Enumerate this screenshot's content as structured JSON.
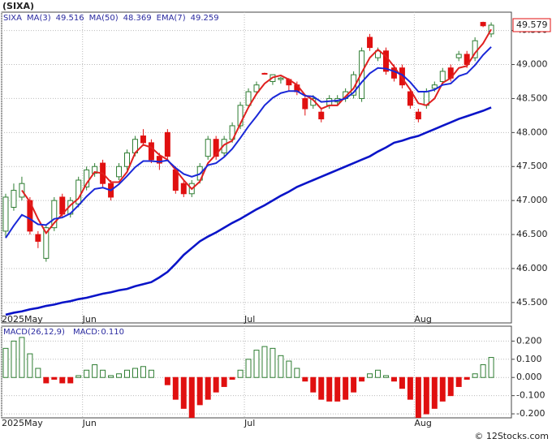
{
  "title": "(SIXA)",
  "footer": "© 12Stocks.com",
  "chart_data": [
    {
      "type": "candlestick",
      "xlim": [
        -0.5,
        62.5
      ],
      "xticks": [
        {
          "value": -0.5,
          "label": "2025May"
        },
        {
          "value": 9.5,
          "label": "Jun"
        },
        {
          "value": 29.5,
          "label": "Jul"
        },
        {
          "value": 50.5,
          "label": "Aug"
        }
      ],
      "ylim": [
        45.2,
        49.77
      ],
      "yticks": [
        {
          "value": 45.5,
          "label": "45.500"
        },
        {
          "value": 46,
          "label": "46.000"
        },
        {
          "value": 46.5,
          "label": "46.500"
        },
        {
          "value": 47,
          "label": "47.000"
        },
        {
          "value": 47.5,
          "label": "47.500"
        },
        {
          "value": 48,
          "label": "48.000"
        },
        {
          "value": 48.5,
          "label": "48.500"
        },
        {
          "value": 49,
          "label": "49.000"
        },
        {
          "value": 49.5,
          "label": "49.500"
        }
      ],
      "grid": true,
      "up_color": "#2e7d32",
      "down_color": "#e01010",
      "series": [
        {
          "name": "SIXA",
          "type": "candlestick",
          "open": [
            46.55,
            46.9,
            47.05,
            47.0,
            46.5,
            46.15,
            46.6,
            47.05,
            46.8,
            46.95,
            47.2,
            47.4,
            47.55,
            47.25,
            47.35,
            47.5,
            47.7,
            47.95,
            47.85,
            47.65,
            48.0,
            47.45,
            47.25,
            47.1,
            47.3,
            47.65,
            47.9,
            47.7,
            47.9,
            48.1,
            48.4,
            48.6,
            48.87,
            48.75,
            48.78,
            48.78,
            48.7,
            48.5,
            48.4,
            48.3,
            48.4,
            48.45,
            48.5,
            48.55,
            48.5,
            49.4,
            49.1,
            49.2,
            48.95,
            48.95,
            48.6,
            48.3,
            48.4,
            48.65,
            48.75,
            48.95,
            49.1,
            49.15,
            49.1,
            49.62,
            49.45
          ],
          "high": [
            47.1,
            47.25,
            47.35,
            47.05,
            46.55,
            46.65,
            47.05,
            47.1,
            47.05,
            47.35,
            47.5,
            47.55,
            47.6,
            47.3,
            47.55,
            47.75,
            47.95,
            48.05,
            47.9,
            47.7,
            48.05,
            47.5,
            47.3,
            47.3,
            47.55,
            47.95,
            47.95,
            47.95,
            48.15,
            48.45,
            48.65,
            48.75,
            48.88,
            48.85,
            48.82,
            48.8,
            48.75,
            48.55,
            48.55,
            48.35,
            48.55,
            48.55,
            48.65,
            48.9,
            49.25,
            49.45,
            49.25,
            49.25,
            49.0,
            49.0,
            48.65,
            48.35,
            48.65,
            48.75,
            48.95,
            49.0,
            49.2,
            49.2,
            49.4,
            49.63,
            49.62
          ],
          "low": [
            46.45,
            46.85,
            47.0,
            46.5,
            46.3,
            46.1,
            46.55,
            46.75,
            46.75,
            46.9,
            47.15,
            47.35,
            47.2,
            47.0,
            47.3,
            47.45,
            47.65,
            47.8,
            47.55,
            47.45,
            47.6,
            47.1,
            47.05,
            47.05,
            47.25,
            47.6,
            47.6,
            47.65,
            47.85,
            48.05,
            48.35,
            48.55,
            48.86,
            48.7,
            48.72,
            48.6,
            48.55,
            48.25,
            48.35,
            48.15,
            48.35,
            48.4,
            48.45,
            48.5,
            48.45,
            49.2,
            49.05,
            48.85,
            48.75,
            48.65,
            48.35,
            48.15,
            48.35,
            48.6,
            48.7,
            48.75,
            49.05,
            48.95,
            49.05,
            49.55,
            49.4
          ],
          "close": [
            47.05,
            47.15,
            47.25,
            46.55,
            46.4,
            46.6,
            47.0,
            46.8,
            47.0,
            47.3,
            47.45,
            47.5,
            47.25,
            47.05,
            47.5,
            47.7,
            47.9,
            47.85,
            47.6,
            47.55,
            47.65,
            47.15,
            47.1,
            47.25,
            47.5,
            47.9,
            47.65,
            47.9,
            48.1,
            48.4,
            48.6,
            48.7,
            48.87,
            48.85,
            48.8,
            48.7,
            48.6,
            48.35,
            48.5,
            48.2,
            48.5,
            48.5,
            48.6,
            48.85,
            49.2,
            49.25,
            49.2,
            48.9,
            48.8,
            48.7,
            48.4,
            48.2,
            48.6,
            48.7,
            48.9,
            48.8,
            49.15,
            49.0,
            49.35,
            49.57,
            49.579
          ]
        },
        {
          "name": "MA(3)",
          "type": "line",
          "color": "#e02020",
          "width": 2,
          "values": [
            null,
            null,
            47.15,
            46.98,
            46.73,
            46.52,
            46.67,
            46.8,
            46.93,
            47.03,
            47.25,
            47.42,
            47.4,
            47.27,
            47.27,
            47.42,
            47.7,
            47.82,
            47.78,
            47.67,
            47.6,
            47.45,
            47.3,
            47.17,
            47.28,
            47.55,
            47.68,
            47.82,
            47.88,
            48.13,
            48.37,
            48.57,
            48.72,
            48.81,
            48.84,
            48.78,
            48.7,
            48.55,
            48.48,
            48.35,
            48.4,
            48.4,
            48.53,
            48.65,
            48.88,
            49.1,
            49.22,
            49.12,
            48.97,
            48.8,
            48.63,
            48.43,
            48.4,
            48.5,
            48.73,
            48.8,
            48.95,
            48.98,
            49.17,
            49.31,
            49.516
          ]
        },
        {
          "name": "MA(50)",
          "type": "line",
          "color": "#0a14c8",
          "width": 2.6,
          "values": [
            45.32,
            45.35,
            45.37,
            45.4,
            45.42,
            45.45,
            45.47,
            45.5,
            45.52,
            45.55,
            45.57,
            45.6,
            45.63,
            45.65,
            45.68,
            45.7,
            45.74,
            45.77,
            45.8,
            45.87,
            45.95,
            46.07,
            46.2,
            46.3,
            46.4,
            46.47,
            46.53,
            46.6,
            46.67,
            46.73,
            46.8,
            46.87,
            46.93,
            47.0,
            47.07,
            47.13,
            47.2,
            47.25,
            47.3,
            47.35,
            47.4,
            47.45,
            47.5,
            47.55,
            47.6,
            47.65,
            47.72,
            47.78,
            47.85,
            47.88,
            47.92,
            47.95,
            48.0,
            48.05,
            48.1,
            48.15,
            48.2,
            48.24,
            48.28,
            48.32,
            48.369
          ]
        },
        {
          "name": "EMA(7)",
          "type": "line",
          "color": "#1a28d8",
          "width": 2,
          "values": [
            46.45,
            46.63,
            46.79,
            46.73,
            46.65,
            46.64,
            46.73,
            46.75,
            46.81,
            46.93,
            47.06,
            47.17,
            47.19,
            47.15,
            47.24,
            47.36,
            47.49,
            47.58,
            47.58,
            47.57,
            47.59,
            47.48,
            47.39,
            47.35,
            47.39,
            47.52,
            47.55,
            47.64,
            47.76,
            47.92,
            48.09,
            48.24,
            48.4,
            48.51,
            48.58,
            48.61,
            48.61,
            48.54,
            48.53,
            48.45,
            48.46,
            48.47,
            48.5,
            48.59,
            48.74,
            48.87,
            48.95,
            48.94,
            48.9,
            48.85,
            48.74,
            48.6,
            48.6,
            48.63,
            48.7,
            48.72,
            48.83,
            48.87,
            48.99,
            49.14,
            49.259
          ]
        }
      ]
    },
    {
      "type": "bar",
      "name": "MACD(26,12,9)",
      "legend_name": "MACD:",
      "legend_label": "0.110",
      "xlim": [
        -0.5,
        62.5
      ],
      "xticks": [
        {
          "value": -0.5,
          "label": "2025May"
        },
        {
          "value": 9.5,
          "label": "Jun"
        },
        {
          "value": 29.5,
          "label": "Jul"
        },
        {
          "value": 50.5,
          "label": "Aug"
        }
      ],
      "ylim": [
        -0.222,
        0.282
      ],
      "yticks": [
        {
          "value": -0.2,
          "label": "-0.200"
        },
        {
          "value": -0.1,
          "label": "-0.100"
        },
        {
          "value": 0,
          "label": "0.000"
        },
        {
          "value": 0.1,
          "label": "0.100"
        },
        {
          "value": 0.2,
          "label": "0.200"
        }
      ],
      "grid": true,
      "up_color": "#2e7d32",
      "down_color": "#e01010",
      "values": [
        0.16,
        0.2,
        0.22,
        0.13,
        0.05,
        -0.03,
        -0.01,
        -0.03,
        -0.03,
        0.01,
        0.04,
        0.07,
        0.04,
        0.01,
        0.02,
        0.04,
        0.05,
        0.06,
        0.04,
        0.0,
        -0.04,
        -0.12,
        -0.17,
        -0.22,
        -0.15,
        -0.12,
        -0.08,
        -0.05,
        -0.01,
        0.04,
        0.1,
        0.15,
        0.17,
        0.16,
        0.12,
        0.09,
        0.05,
        -0.02,
        -0.08,
        -0.12,
        -0.13,
        -0.13,
        -0.12,
        -0.08,
        -0.02,
        0.02,
        0.04,
        0.01,
        -0.02,
        -0.06,
        -0.12,
        -0.22,
        -0.2,
        -0.17,
        -0.13,
        -0.1,
        -0.05,
        -0.01,
        0.02,
        0.07,
        0.11
      ]
    }
  ]
}
